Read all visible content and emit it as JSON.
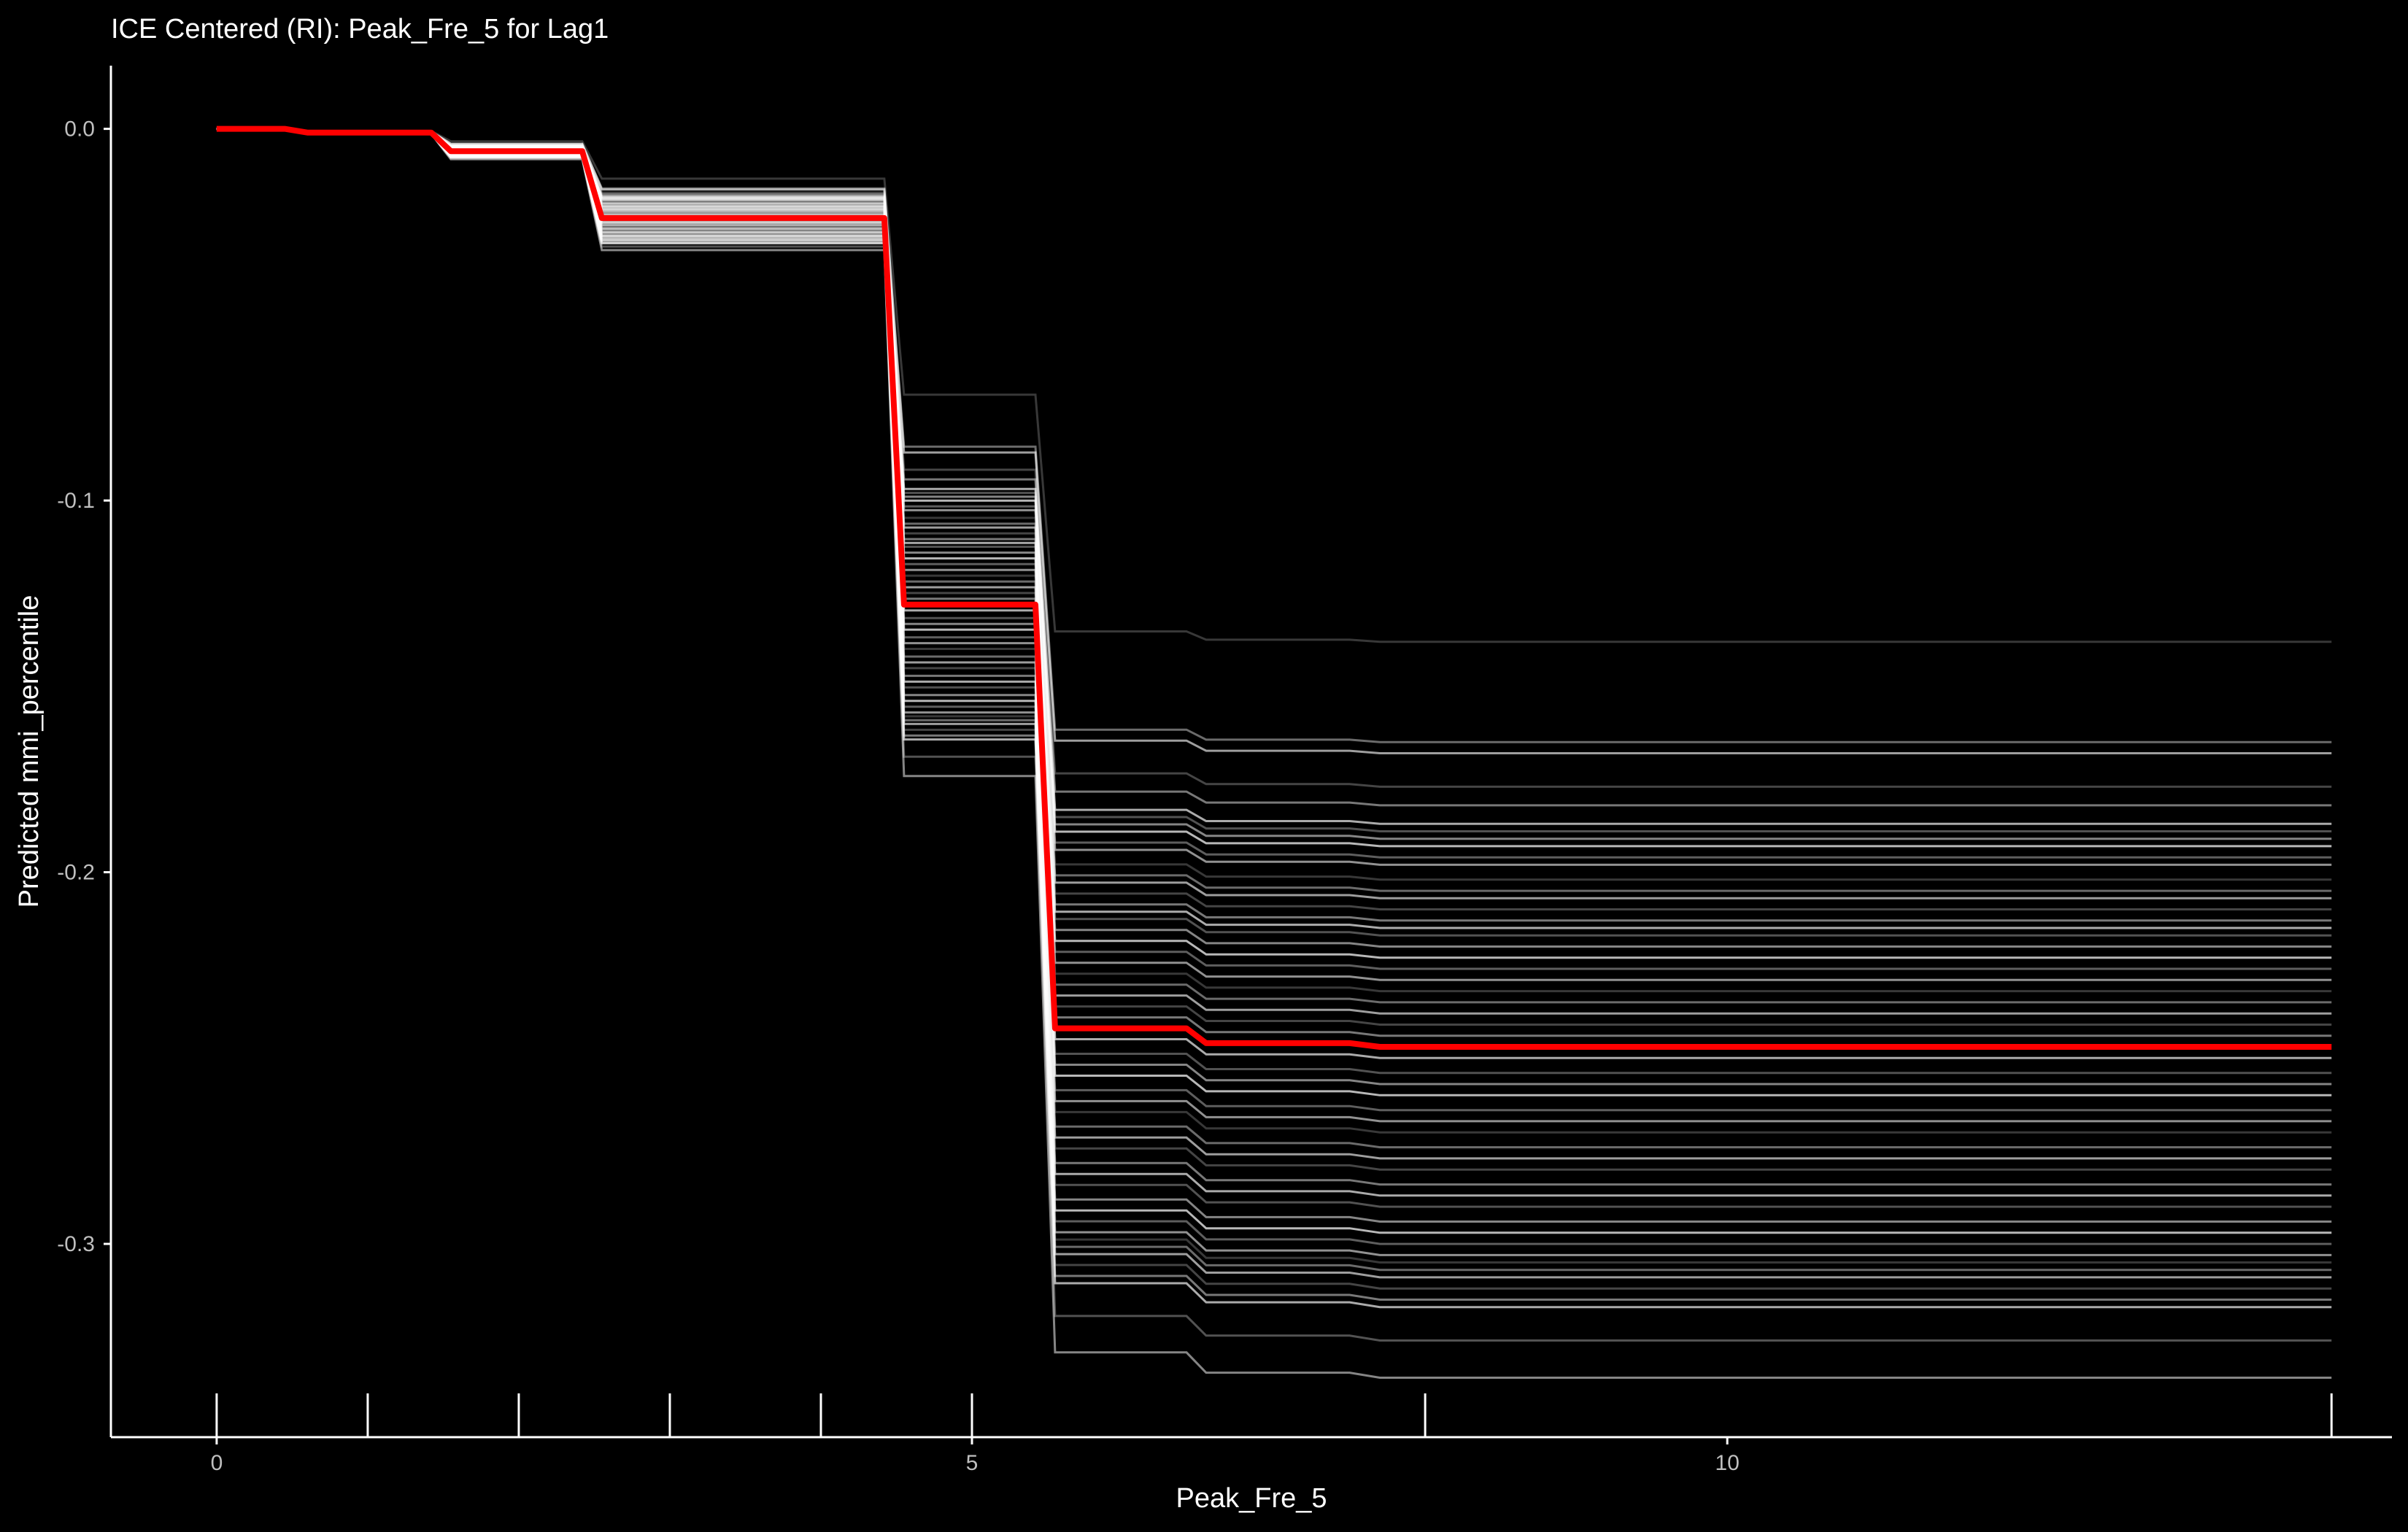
{
  "chart_data": {
    "type": "line",
    "title": "ICE Centered (RI): Peak_Fre_5 for Lag1",
    "xlabel": "Peak_Fre_5",
    "ylabel": "Predicted mmi_percentile",
    "xlim": [
      -0.7,
      14.4
    ],
    "ylim": [
      -0.352,
      0.017
    ],
    "x_ticks": [
      0,
      5,
      10
    ],
    "y_ticks": [
      0.0,
      -0.1,
      -0.2,
      -0.3
    ],
    "y_tick_labels": [
      "0.0",
      "-0.1",
      "-0.2",
      "-0.3"
    ],
    "rug": [
      0,
      1,
      2,
      3,
      4,
      5,
      8,
      14
    ],
    "grid": false,
    "colors": {
      "background": "#000000",
      "ice_lines": "#ffffff",
      "pdp_line": "#ff0000",
      "axis": "#ffffff"
    },
    "x": [
      0,
      0.45,
      0.6,
      1.42,
      1.55,
      2.42,
      2.55,
      4.42,
      4.55,
      5.42,
      5.55,
      6.42,
      6.55,
      7.5,
      7.7,
      14
    ],
    "series": [
      {
        "name": "",
        "values": [
          0,
          0,
          -0.001,
          -0.001,
          -0.006,
          -0.006,
          -0.024,
          -0.024,
          -0.128,
          -0.128,
          -0.242,
          -0.242,
          -0.246,
          -0.246,
          -0.247,
          -0.247
        ]
      }
    ],
    "ice_final_values": [
      -0.138,
      -0.165,
      -0.168,
      -0.177,
      -0.182,
      -0.187,
      -0.189,
      -0.191,
      -0.193,
      -0.196,
      -0.198,
      -0.202,
      -0.205,
      -0.207,
      -0.21,
      -0.213,
      -0.215,
      -0.217,
      -0.22,
      -0.223,
      -0.226,
      -0.229,
      -0.232,
      -0.235,
      -0.238,
      -0.241,
      -0.244,
      -0.25,
      -0.254,
      -0.257,
      -0.26,
      -0.264,
      -0.267,
      -0.27,
      -0.274,
      -0.277,
      -0.28,
      -0.284,
      -0.287,
      -0.29,
      -0.294,
      -0.297,
      -0.3,
      -0.303,
      -0.305,
      -0.307,
      -0.309,
      -0.312,
      -0.315,
      -0.317,
      -0.326,
      -0.336
    ]
  }
}
